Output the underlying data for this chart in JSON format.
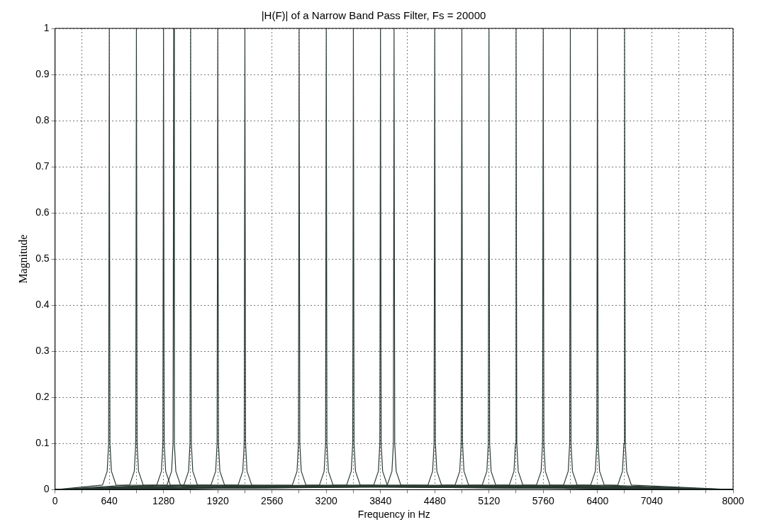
{
  "chart_data": {
    "type": "line",
    "title": "|H(F)| of a Narrow Band Pass Filter, Fs = 20000",
    "xlabel": "Frequency in Hz",
    "ylabel": "Magnitude",
    "xlim": [
      0,
      8000
    ],
    "ylim": [
      0,
      1
    ],
    "xticks": [
      0,
      {
        "value": 320,
        "label": null
      },
      640,
      {
        "value": 960,
        "label": null
      },
      1280,
      {
        "value": 1600,
        "label": null
      },
      1920,
      {
        "value": 2240,
        "label": null
      },
      2560,
      {
        "value": 2880,
        "label": null
      },
      3200,
      {
        "value": 3520,
        "label": null
      },
      3840,
      {
        "value": 4160,
        "label": null
      },
      4480,
      {
        "value": 4800,
        "label": null
      },
      5120,
      {
        "value": 5440,
        "label": null
      },
      5760,
      {
        "value": 6080,
        "label": null
      },
      6400,
      {
        "value": 6720,
        "label": null
      },
      7040,
      {
        "value": 7360,
        "label": null
      },
      {
        "value": 7680,
        "label": null
      },
      8000
    ],
    "yticks": [
      0,
      0.1,
      0.2,
      0.3,
      0.4,
      0.5,
      0.6,
      0.7,
      0.8,
      0.9,
      1
    ],
    "grid": true,
    "legend": false,
    "marker": "none",
    "line_style": "solid",
    "series": [
      {
        "color": "#2b3b33",
        "x": [
          0,
          560,
          615,
          632,
          640,
          648,
          665,
          720,
          8000
        ],
        "values": [
          0,
          0.01,
          0.04,
          0.1,
          1,
          0.1,
          0.04,
          0.01,
          0
        ]
      },
      {
        "color": "#2b3b33",
        "x": [
          0,
          880,
          935,
          952,
          960,
          968,
          985,
          1040,
          8000
        ],
        "values": [
          0,
          0.01,
          0.04,
          0.1,
          1,
          0.1,
          0.04,
          0.01,
          0
        ]
      },
      {
        "color": "#2b3b33",
        "x": [
          0,
          1200,
          1255,
          1272,
          1280,
          1288,
          1305,
          1360,
          8000
        ],
        "values": [
          0,
          0.01,
          0.04,
          0.1,
          1,
          0.1,
          0.04,
          0.01,
          0
        ]
      },
      {
        "color": "#2b3b33",
        "x": [
          0,
          1320,
          1375,
          1392,
          1400,
          1408,
          1425,
          1480,
          8000
        ],
        "values": [
          0,
          0.01,
          0.04,
          0.1,
          1,
          0.1,
          0.04,
          0.01,
          0
        ]
      },
      {
        "color": "#2b3b33",
        "x": [
          0,
          1520,
          1575,
          1592,
          1600,
          1608,
          1625,
          1680,
          8000
        ],
        "values": [
          0,
          0.01,
          0.04,
          0.1,
          1,
          0.1,
          0.04,
          0.01,
          0
        ]
      },
      {
        "color": "#2b3b33",
        "x": [
          0,
          1840,
          1895,
          1912,
          1920,
          1928,
          1945,
          2000,
          8000
        ],
        "values": [
          0,
          0.01,
          0.04,
          0.1,
          1,
          0.1,
          0.04,
          0.01,
          0
        ]
      },
      {
        "color": "#2b3b33",
        "x": [
          0,
          2160,
          2215,
          2232,
          2240,
          2248,
          2265,
          2320,
          8000
        ],
        "values": [
          0,
          0.01,
          0.04,
          0.1,
          1,
          0.1,
          0.04,
          0.01,
          0
        ]
      },
      {
        "color": "#2b3b33",
        "x": [
          0,
          2800,
          2855,
          2872,
          2880,
          2888,
          2905,
          2960,
          8000
        ],
        "values": [
          0,
          0.01,
          0.04,
          0.1,
          1,
          0.1,
          0.04,
          0.01,
          0
        ]
      },
      {
        "color": "#2b3b33",
        "x": [
          0,
          3120,
          3175,
          3192,
          3200,
          3208,
          3225,
          3280,
          8000
        ],
        "values": [
          0,
          0.01,
          0.04,
          0.1,
          1,
          0.1,
          0.04,
          0.01,
          0
        ]
      },
      {
        "color": "#2b3b33",
        "x": [
          0,
          3440,
          3495,
          3512,
          3520,
          3528,
          3545,
          3600,
          8000
        ],
        "values": [
          0,
          0.01,
          0.04,
          0.1,
          1,
          0.1,
          0.04,
          0.01,
          0
        ]
      },
      {
        "color": "#2b3b33",
        "x": [
          0,
          3760,
          3815,
          3832,
          3840,
          3848,
          3865,
          3920,
          8000
        ],
        "values": [
          0,
          0.01,
          0.04,
          0.1,
          1,
          0.1,
          0.04,
          0.01,
          0
        ]
      },
      {
        "color": "#2b3b33",
        "x": [
          0,
          3920,
          3975,
          3992,
          4000,
          4008,
          4025,
          4080,
          8000
        ],
        "values": [
          0,
          0.01,
          0.04,
          0.1,
          1,
          0.1,
          0.04,
          0.01,
          0
        ]
      },
      {
        "color": "#2b3b33",
        "x": [
          0,
          4400,
          4455,
          4472,
          4480,
          4488,
          4505,
          4560,
          8000
        ],
        "values": [
          0,
          0.01,
          0.04,
          0.1,
          1,
          0.1,
          0.04,
          0.01,
          0
        ]
      },
      {
        "color": "#2b3b33",
        "x": [
          0,
          4720,
          4775,
          4792,
          4800,
          4808,
          4825,
          4880,
          8000
        ],
        "values": [
          0,
          0.01,
          0.04,
          0.1,
          1,
          0.1,
          0.04,
          0.01,
          0
        ]
      },
      {
        "color": "#2b3b33",
        "x": [
          0,
          5040,
          5095,
          5112,
          5120,
          5128,
          5145,
          5200,
          8000
        ],
        "values": [
          0,
          0.01,
          0.04,
          0.1,
          1,
          0.1,
          0.04,
          0.01,
          0
        ]
      },
      {
        "color": "#2b3b33",
        "x": [
          0,
          5360,
          5415,
          5432,
          5440,
          5448,
          5465,
          5520,
          8000
        ],
        "values": [
          0,
          0.01,
          0.04,
          0.1,
          1,
          0.1,
          0.04,
          0.01,
          0
        ]
      },
      {
        "color": "#2b3b33",
        "x": [
          0,
          5680,
          5735,
          5752,
          5760,
          5768,
          5785,
          5840,
          8000
        ],
        "values": [
          0,
          0.01,
          0.04,
          0.1,
          1,
          0.1,
          0.04,
          0.01,
          0
        ]
      },
      {
        "color": "#2b3b33",
        "x": [
          0,
          6000,
          6055,
          6072,
          6080,
          6088,
          6105,
          6160,
          8000
        ],
        "values": [
          0,
          0.01,
          0.04,
          0.1,
          1,
          0.1,
          0.04,
          0.01,
          0
        ]
      },
      {
        "color": "#2b3b33",
        "x": [
          0,
          6320,
          6375,
          6392,
          6400,
          6408,
          6425,
          6480,
          8000
        ],
        "values": [
          0,
          0.01,
          0.04,
          0.1,
          1,
          0.1,
          0.04,
          0.01,
          0
        ]
      },
      {
        "color": "#2b3b33",
        "x": [
          0,
          6640,
          6695,
          6712,
          6720,
          6728,
          6745,
          6800,
          8000
        ],
        "values": [
          0,
          0.01,
          0.04,
          0.1,
          1,
          0.1,
          0.04,
          0.01,
          0
        ]
      }
    ]
  }
}
